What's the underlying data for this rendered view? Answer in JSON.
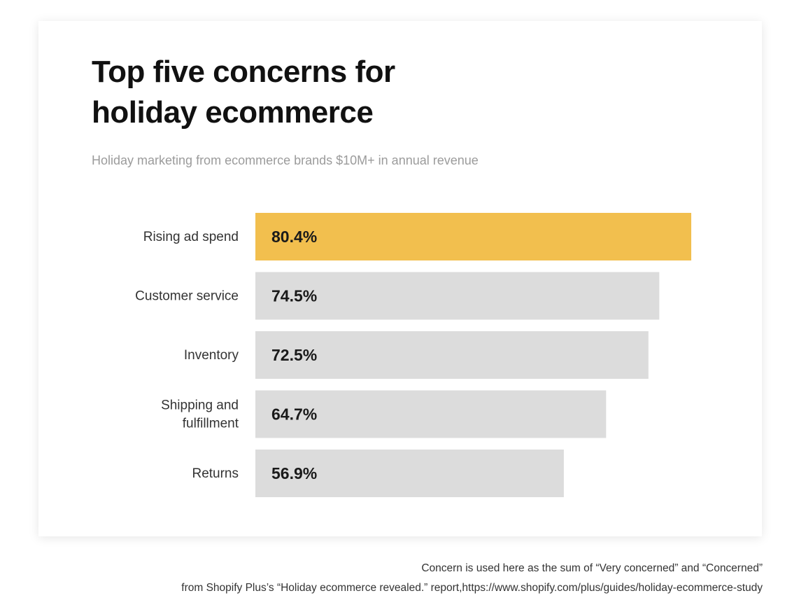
{
  "header": {
    "title_line1": "Top five concerns for",
    "title_line2": "holiday ecommerce",
    "subtitle": "Holiday marketing from ecommerce brands $10M+ in annual revenue"
  },
  "footnote": {
    "line1": "Concern is used here as the sum of “Very concerned” and “Concerned”",
    "line2": "from Shopify Plus’s “Holiday ecommerce revealed.” report,https://www.shopify.com/plus/guides/holiday-ecommerce-study"
  },
  "colors": {
    "highlight": "#f2bf4e",
    "default_bar": "#dcdcdc",
    "value_text": "#1a1a1a",
    "category_text": "#333333"
  },
  "chart_data": {
    "type": "bar",
    "orientation": "horizontal",
    "title": "Top five concerns for holiday ecommerce",
    "subtitle": "Holiday marketing from ecommerce brands $10M+ in annual revenue",
    "categories": [
      [
        "Rising ad spend"
      ],
      [
        "Customer service"
      ],
      [
        "Inventory"
      ],
      [
        "Shipping and",
        "fulfillment"
      ],
      [
        "Returns"
      ]
    ],
    "values": [
      80.4,
      74.5,
      72.5,
      64.7,
      56.9
    ],
    "value_labels": [
      "80.4%",
      "74.5%",
      "72.5%",
      "64.7%",
      "56.9%"
    ],
    "highlight_index": 0,
    "xlim": [
      0,
      80.4
    ],
    "grid": false,
    "legend": "none"
  }
}
